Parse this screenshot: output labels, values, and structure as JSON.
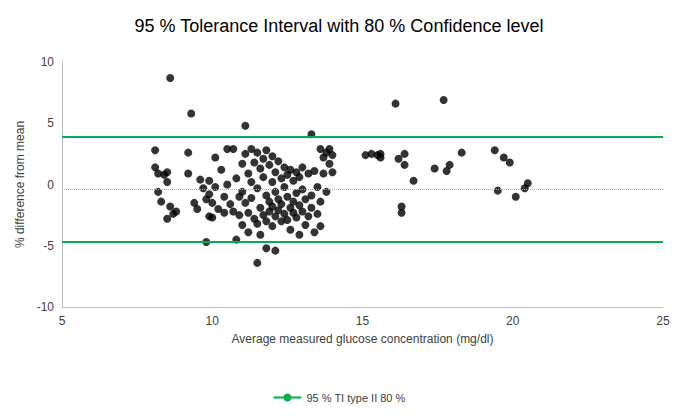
{
  "chart_data": {
    "type": "scatter",
    "title": "95 % Tolerance Interval with 80 % Confidence level",
    "x_label": "Average measured glucose concentration (mg/dl)",
    "y_label": "% difference from mean",
    "color": "#000000",
    "marker": "circle",
    "x": [
      8.6,
      9.3,
      11.1,
      13.3,
      16.1,
      17.7,
      11.5,
      11.8,
      12.1,
      9.8,
      10.8,
      8.1,
      8.1,
      8.2,
      8.2,
      8.3,
      8.4,
      8.5,
      8.5,
      8.6,
      8.7,
      8.8,
      8.5,
      9.2,
      9.2,
      9.4,
      9.5,
      9.6,
      9.7,
      9.8,
      9.9,
      9.9,
      10.0,
      10.0,
      10.1,
      10.2,
      10.3,
      10.4,
      10.5,
      10.5,
      10.6,
      10.7,
      10.7,
      10.8,
      10.9,
      10.9,
      11.0,
      11.0,
      11.1,
      11.1,
      11.2,
      11.2,
      11.2,
      11.3,
      11.3,
      11.3,
      11.4,
      11.4,
      11.5,
      11.5,
      11.5,
      11.6,
      11.6,
      11.7,
      11.7,
      11.7,
      11.8,
      11.8,
      11.8,
      11.9,
      11.9,
      11.9,
      12.0,
      12.0,
      12.0,
      12.0,
      12.1,
      12.1,
      12.1,
      12.2,
      12.2,
      12.2,
      12.3,
      12.3,
      12.3,
      12.4,
      12.4,
      12.4,
      12.5,
      12.5,
      12.5,
      12.6,
      12.6,
      12.6,
      12.7,
      12.7,
      12.7,
      12.8,
      12.8,
      12.8,
      12.9,
      12.9,
      13.0,
      13.0,
      13.0,
      13.1,
      13.1,
      13.2,
      13.2,
      13.3,
      13.3,
      13.4,
      13.4,
      13.5,
      13.5,
      13.6,
      13.6,
      13.7,
      13.7,
      13.8,
      13.8,
      13.9,
      13.9,
      14.0,
      14.0,
      13.6,
      10.4,
      11.6,
      12.9,
      11.0,
      10.1,
      9.9,
      15.1,
      15.3,
      15.5,
      15.6,
      15.6,
      16.2,
      16.3,
      16.3,
      16.4,
      16.4,
      16.7,
      17.4,
      17.8,
      17.9,
      18.3,
      19.4,
      19.5,
      19.7,
      19.9,
      20.1,
      20.4,
      20.5
    ],
    "values": [
      8.7,
      5.8,
      4.8,
      4.1,
      6.6,
      6.9,
      -6.4,
      -5.2,
      -5.4,
      -4.7,
      -4.5,
      2.8,
      1.4,
      0.9,
      -0.6,
      -1.4,
      0.8,
      0.2,
      -2.8,
      -1.8,
      -2.4,
      -2.2,
      1.0,
      2.6,
      0.9,
      -1.5,
      -2.0,
      0.4,
      -0.3,
      -1.2,
      0.3,
      -0.8,
      -1.5,
      -2.7,
      -0.2,
      -2.0,
      1.2,
      -1.0,
      2.9,
      0.0,
      -1.6,
      2.9,
      -2.2,
      0.5,
      -1.0,
      -2.5,
      1.7,
      -0.6,
      2.5,
      -1.5,
      0.9,
      -2.3,
      -3.9,
      2.9,
      0.2,
      -1.1,
      1.8,
      -2.8,
      2.6,
      -0.3,
      -3.2,
      1.3,
      -1.9,
      2.1,
      0.6,
      -2.5,
      2.8,
      -0.9,
      -3.0,
      1.6,
      -1.4,
      -2.2,
      2.3,
      0.2,
      -1.8,
      -3.4,
      1.0,
      -0.6,
      -2.6,
      1.9,
      -1.2,
      -2.1,
      0.5,
      -1.6,
      -3.0,
      1.4,
      -0.2,
      -2.4,
      0.8,
      -1.0,
      -2.9,
      1.2,
      -1.9,
      -3.7,
      0.3,
      -1.4,
      -2.3,
      1.0,
      -0.7,
      -2.7,
      0.6,
      -1.7,
      1.4,
      -0.4,
      -2.2,
      -1.2,
      -3.3,
      0.9,
      -2.6,
      -0.9,
      -1.9,
      1.1,
      -3.9,
      -0.2,
      -2.4,
      2.9,
      -1.4,
      0.9,
      2.2,
      2.6,
      -0.6,
      1.7,
      2.9,
      2.4,
      1.0,
      -3.4,
      -2.3,
      -4.1,
      -4.1,
      -3.3,
      2.2,
      -2.6,
      2.4,
      2.5,
      2.4,
      2.2,
      2.5,
      2.1,
      -1.8,
      -2.3,
      1.6,
      2.5,
      0.3,
      1.3,
      1.1,
      1.6,
      2.6,
      2.8,
      -0.5,
      2.2,
      1.8,
      -1.0,
      -0.3,
      0.1
    ],
    "tolerance_interval": {
      "name": "95 % TI type II 80 %",
      "color": "#00b050",
      "line_style": "solid",
      "values": [
        3.9,
        -4.7
      ]
    },
    "mean": {
      "color": "#a6a6a6",
      "line_style": "dotted",
      "value": -0.4
    },
    "xlim": [
      5,
      25
    ],
    "xticks": [
      5,
      10,
      15,
      20,
      25
    ],
    "ylim": [
      -10,
      10
    ],
    "yticks": [
      -10,
      -5,
      0,
      5,
      10
    ],
    "grid": false,
    "legend": "bottom"
  }
}
